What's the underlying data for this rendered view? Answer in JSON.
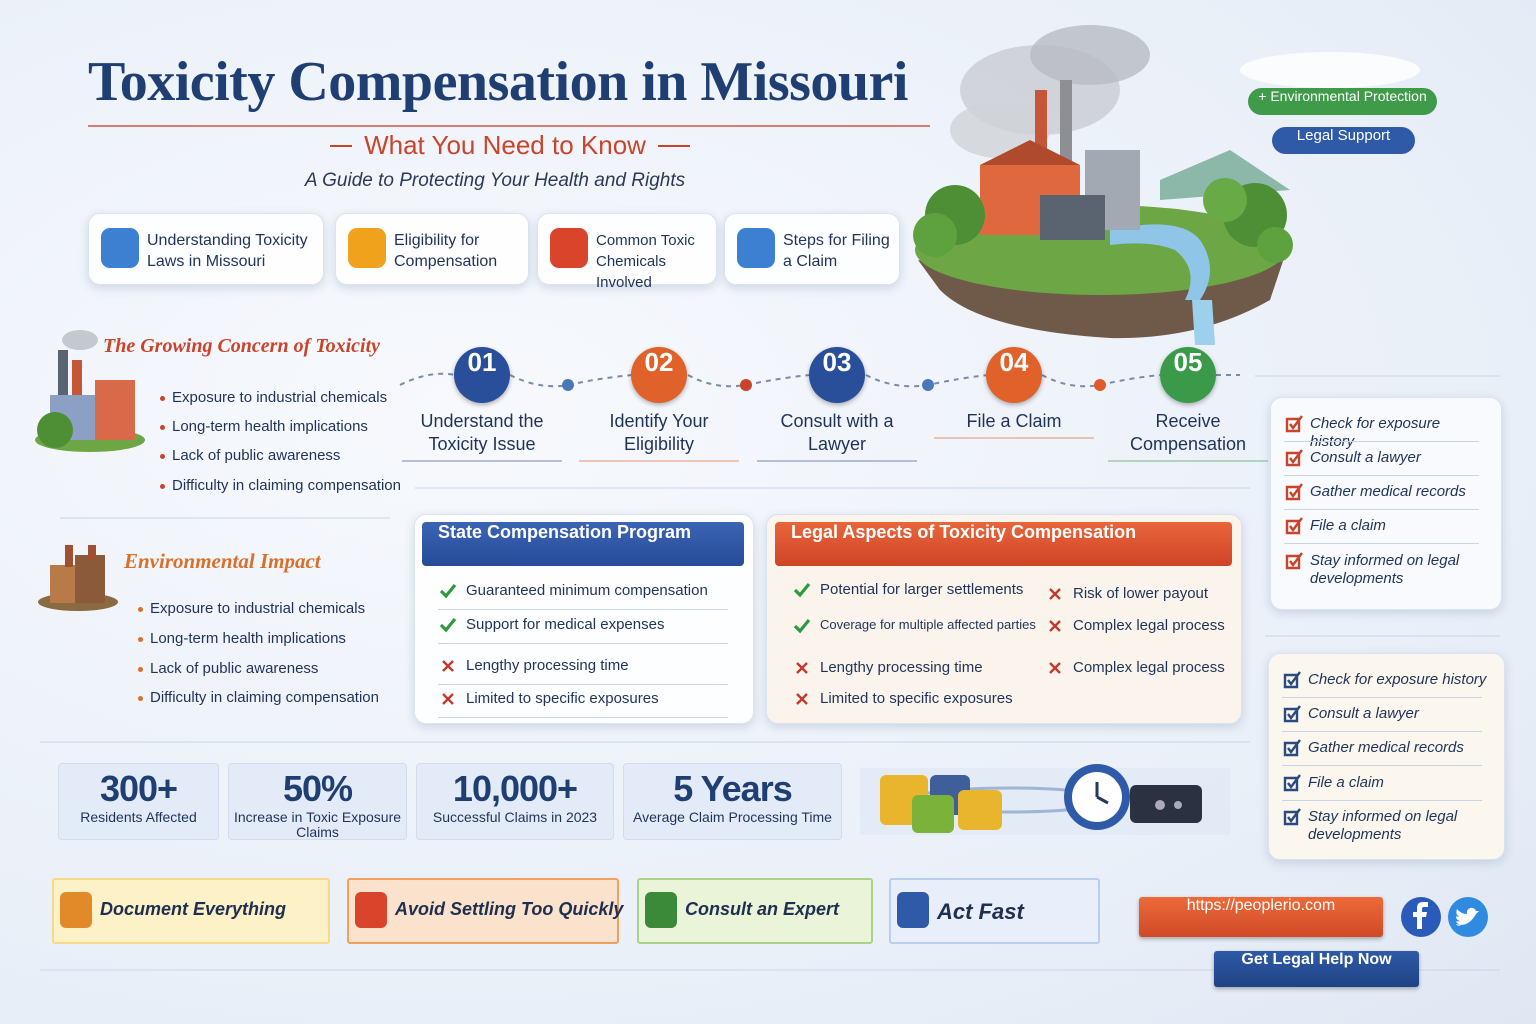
{
  "header": {
    "title": "Toxicity Compensation in Missouri",
    "subtitle": "What You Need to Know",
    "tagline": "A Guide to Protecting Your Health and Rights"
  },
  "topics": [
    "Understanding Toxicity Laws in Missouri",
    "Eligibility for Compensation",
    "Common Toxic Chemicals Involved",
    "Steps for Filing a Claim"
  ],
  "badges": [
    "+ Environmental Protection",
    "Legal Support"
  ],
  "concern": {
    "title": "The Growing Concern of Toxicity",
    "items": [
      "Exposure to industrial chemicals",
      "Long-term health implications",
      "Lack of public awareness",
      "Difficulty in claiming compensation"
    ]
  },
  "steps": [
    {
      "number": "01",
      "label": "Understand the Toxicity Issue"
    },
    {
      "number": "02",
      "label": "Identify Your Eligibility"
    },
    {
      "number": "03",
      "label": "Consult with a Lawyer"
    },
    {
      "number": "04",
      "label": "File a Claim"
    },
    {
      "number": "05",
      "label": "Receive Compensation"
    }
  ],
  "environmental_impact": {
    "title": "Environmental Impact",
    "items": [
      "Exposure to industrial chemicals",
      "Long-term health implications",
      "Lack of public awareness",
      "Difficulty in claiming compensation"
    ]
  },
  "state_program": {
    "title": "State Compensation Program",
    "pros": [
      "Guaranteed minimum compensation",
      "Support for medical expenses"
    ],
    "cons": [
      "Lengthy processing time",
      "Limited to specific exposures"
    ]
  },
  "legal_aspects": {
    "title": "Legal Aspects of Toxicity Compensation",
    "pros": [
      "Potential for larger settlements",
      "Coverage for multiple affected parties"
    ],
    "cons": [
      "Lengthy processing time",
      "Limited to specific exposures"
    ],
    "risks": [
      "Risk of lower payout",
      "Complex legal process",
      "Complex legal process"
    ]
  },
  "checklist_1": [
    "Check for exposure history",
    "Consult a lawyer",
    "Gather medical records",
    "File a claim",
    "Stay informed on legal developments"
  ],
  "checklist_2": [
    "Check for exposure history",
    "Consult a lawyer",
    "Gather medical records",
    "File a claim",
    "Stay informed on legal developments"
  ],
  "stats": [
    {
      "value": "300+",
      "label": "Residents Affected"
    },
    {
      "value": "50%",
      "label": "Increase in Toxic Exposure Claims"
    },
    {
      "value": "10,000+",
      "label": "Successful Claims in 2023"
    },
    {
      "value": "5 Years",
      "label": "Average Claim Processing Time"
    }
  ],
  "tips": [
    "Document Everything",
    "Avoid Settling Too Quickly",
    "Consult an Expert",
    "Act Fast"
  ],
  "contact": {
    "url": "https://peoplerio.com",
    "button": "Get Legal Help Now"
  }
}
